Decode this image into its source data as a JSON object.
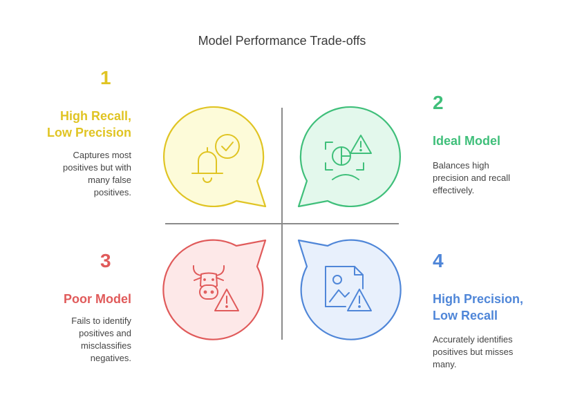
{
  "title": "Model Performance Trade-offs",
  "quadrants": [
    {
      "number": "1",
      "heading": [
        "High Recall,",
        "Low Precision"
      ],
      "description": [
        "Captures most",
        "positives but with",
        "many false",
        "positives."
      ],
      "color": "#e0c423",
      "fill": "#fdfbd9",
      "icon": "bell-check-icon"
    },
    {
      "number": "2",
      "heading": [
        "Ideal Model"
      ],
      "description": [
        "Balances high",
        "precision and recall",
        "effectively."
      ],
      "color": "#3fbf7a",
      "fill": "#e3f8ec",
      "icon": "chart-warning-frown-icon"
    },
    {
      "number": "3",
      "heading": [
        "Poor Model"
      ],
      "description": [
        "Fails to identify",
        "positives and",
        "misclassifies",
        "negatives."
      ],
      "color": "#e05a5a",
      "fill": "#fde8e8",
      "icon": "bull-warning-icon"
    },
    {
      "number": "4",
      "heading": [
        "High Precision,",
        "Low Recall"
      ],
      "description": [
        "Accurately identifies",
        "positives but misses",
        "many."
      ],
      "color": "#4f86d8",
      "fill": "#e8f0fc",
      "icon": "image-file-warning-icon"
    }
  ]
}
